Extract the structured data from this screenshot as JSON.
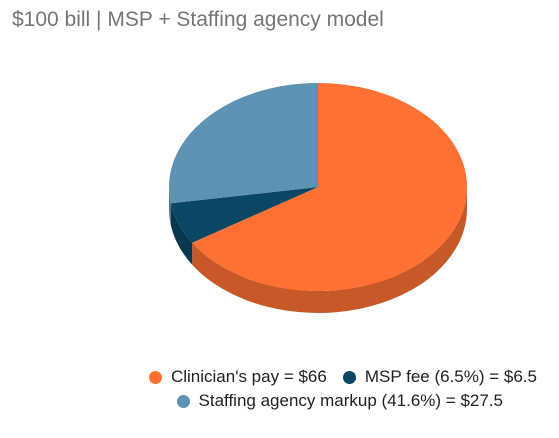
{
  "chart_data": {
    "type": "pie",
    "title": "$100 bill | MSP + Staffing agency model",
    "slices": [
      {
        "label": "Clinician's pay = $66",
        "value": 66,
        "color": "#ff7132"
      },
      {
        "label": "MSP fee (6.5%) = $6.5",
        "value": 6.5,
        "color": "#0b4664"
      },
      {
        "label": "Staffing agency markup (41.6%) = $27.5",
        "value": 27.5,
        "color": "#5d92b2"
      }
    ],
    "three_d": true,
    "legend_position": "bottom"
  }
}
